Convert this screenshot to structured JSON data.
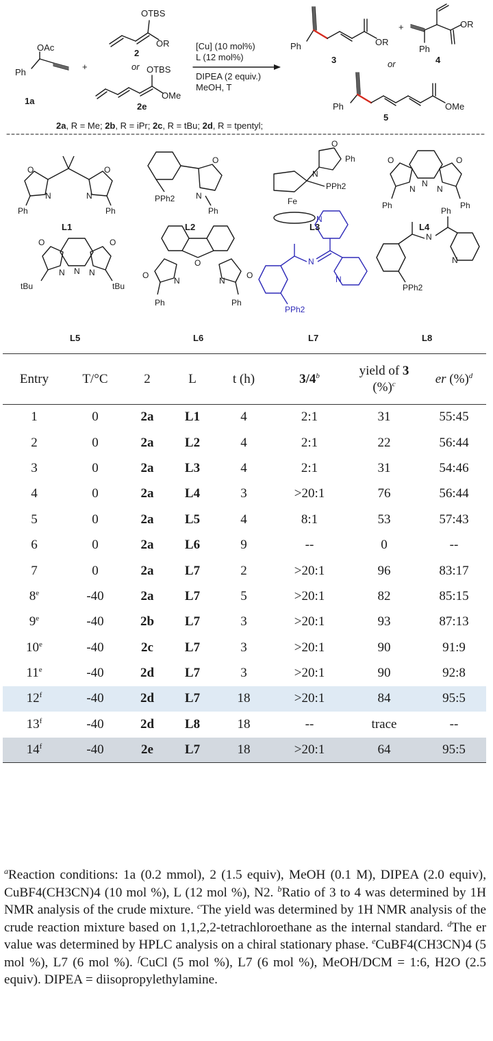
{
  "scheme": {
    "reactant_1a": {
      "label": "1a",
      "group": "OAc",
      "ph": "Ph"
    },
    "plus": "+",
    "reactant_2": {
      "label": "2",
      "otbs": "OTBS",
      "or_sub": "OR"
    },
    "or_text": "or",
    "reactant_2e": {
      "label": "2e",
      "otbs": "OTBS",
      "ome": "OMe"
    },
    "conditions": [
      "[Cu] (10 mol%)",
      "L (12 mol%)",
      "DIPEA (2 equiv.)",
      "MeOH, T"
    ],
    "product_3": {
      "label": "3",
      "ph": "Ph",
      "or_sub": "OR"
    },
    "product_4": {
      "label": "4",
      "ph": "Ph",
      "or_sub": "OR"
    },
    "product_5": {
      "label": "5",
      "ph": "Ph",
      "ome": "OMe"
    },
    "substituents": [
      {
        "id": "2a",
        "r": "Me"
      },
      {
        "id": "2b",
        "r": "iPr"
      },
      {
        "id": "2c",
        "r": "tBu"
      },
      {
        "id": "2d",
        "r": "tpentyl"
      }
    ]
  },
  "ligands": [
    {
      "label": "L1",
      "highlight": false
    },
    {
      "label": "L2",
      "highlight": false
    },
    {
      "label": "L3",
      "highlight": false
    },
    {
      "label": "L4",
      "highlight": false
    },
    {
      "label": "L5",
      "highlight": false
    },
    {
      "label": "L6",
      "highlight": false
    },
    {
      "label": "L7",
      "highlight": true
    },
    {
      "label": "L8",
      "highlight": false
    }
  ],
  "ligand_text": {
    "ph": "Ph",
    "pph2": "PPh2",
    "tbu": "tBu",
    "fe": "Fe",
    "n": "N",
    "o": "O"
  },
  "colors": {
    "highlight_ligand": "#2e2ab8",
    "row_blue": "#dfeaf4",
    "row_grey": "#d3d9e0"
  },
  "table": {
    "headers": {
      "entry": "Entry",
      "temp": "T/°C",
      "reagent": "2",
      "ligand": "L",
      "time": "t (h)",
      "ratio": "3/4",
      "ratio_note": "b",
      "yield_line1": "yield of",
      "yield_bold": "3",
      "yield_line2": "(%)",
      "yield_note": "c",
      "er": "er",
      "er_unit": "(%)",
      "er_note": "d"
    },
    "rows": [
      {
        "entry": "1",
        "note": "",
        "temp": "0",
        "reagent": "2a",
        "ligand": "L1",
        "time": "4",
        "ratio": "2:1",
        "yield": "31",
        "er": "55:45"
      },
      {
        "entry": "2",
        "note": "",
        "temp": "0",
        "reagent": "2a",
        "ligand": "L2",
        "time": "4",
        "ratio": "2:1",
        "yield": "22",
        "er": "56:44"
      },
      {
        "entry": "3",
        "note": "",
        "temp": "0",
        "reagent": "2a",
        "ligand": "L3",
        "time": "4",
        "ratio": "2:1",
        "yield": "31",
        "er": "54:46"
      },
      {
        "entry": "4",
        "note": "",
        "temp": "0",
        "reagent": "2a",
        "ligand": "L4",
        "time": "3",
        "ratio": ">20:1",
        "yield": "76",
        "er": "56:44"
      },
      {
        "entry": "5",
        "note": "",
        "temp": "0",
        "reagent": "2a",
        "ligand": "L5",
        "time": "4",
        "ratio": "8:1",
        "yield": "53",
        "er": "57:43"
      },
      {
        "entry": "6",
        "note": "",
        "temp": "0",
        "reagent": "2a",
        "ligand": "L6",
        "time": "9",
        "ratio": "--",
        "yield": "0",
        "er": "--"
      },
      {
        "entry": "7",
        "note": "",
        "temp": "0",
        "reagent": "2a",
        "ligand": "L7",
        "time": "2",
        "ratio": ">20:1",
        "yield": "96",
        "er": "83:17"
      },
      {
        "entry": "8",
        "note": "e",
        "temp": "-40",
        "reagent": "2a",
        "ligand": "L7",
        "time": "5",
        "ratio": ">20:1",
        "yield": "82",
        "er": "85:15"
      },
      {
        "entry": "9",
        "note": "e",
        "temp": "-40",
        "reagent": "2b",
        "ligand": "L7",
        "time": "3",
        "ratio": ">20:1",
        "yield": "93",
        "er": "87:13"
      },
      {
        "entry": "10",
        "note": "e",
        "temp": "-40",
        "reagent": "2c",
        "ligand": "L7",
        "time": "3",
        "ratio": ">20:1",
        "yield": "90",
        "er": "91:9"
      },
      {
        "entry": "11",
        "note": "e",
        "temp": "-40",
        "reagent": "2d",
        "ligand": "L7",
        "time": "3",
        "ratio": ">20:1",
        "yield": "90",
        "er": "92:8"
      },
      {
        "entry": "12",
        "note": "f",
        "temp": "-40",
        "reagent": "2d",
        "ligand": "L7",
        "time": "18",
        "ratio": ">20:1",
        "yield": "84",
        "er": "95:5"
      },
      {
        "entry": "13",
        "note": "f",
        "temp": "-40",
        "reagent": "2d",
        "ligand": "L8",
        "time": "18",
        "ratio": "--",
        "yield": "trace",
        "er": "--"
      },
      {
        "entry": "14",
        "note": "f",
        "temp": "-40",
        "reagent": "2e",
        "ligand": "L7",
        "time": "18",
        "ratio": ">20:1",
        "yield": "64",
        "er": "95:5"
      }
    ]
  },
  "footnotes": {
    "a": "Reaction conditions: 1a (0.2 mmol), 2 (1.5 equiv), MeOH (0.1 M), DIPEA (2.0 equiv), CuBF4(CH3CN)4 (10 mol %), L (12 mol %), N2.",
    "b": "Ratio of 3 to 4 was determined by 1H NMR analysis of the crude mixture.",
    "c": "The yield was determined by 1H NMR analysis of the crude reaction mixture based on 1,1,2,2-tetrachloroethane as the internal standard.",
    "d": "The er value was determined by HPLC analysis on a chiral stationary phase.",
    "e": "CuBF4(CH3CN)4 (5 mol %), L7 (6 mol %).",
    "f": "CuCl (5 mol %), L7 (6 mol %), MeOH/DCM = 1:6, H2O (2.5 equiv). DIPEA = diisopropylethylamine."
  }
}
